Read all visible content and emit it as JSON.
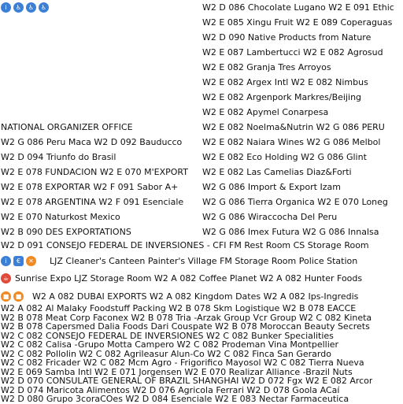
{
  "icons": {
    "row1": [
      "info-icon",
      "accessibility-icon",
      "accessibility-icon",
      "accessibility-icon"
    ],
    "row14": [
      "info-icon",
      "atm-icon",
      "no-entry-icon"
    ],
    "row15": [
      "restaurant-icon"
    ],
    "row16": [
      "storage-icon",
      "storage-icon"
    ],
    "colors": {
      "blue": "#3b7fd6",
      "red": "#e04a3a",
      "orange": "#f08a24"
    }
  },
  "right_col": [
    "W2 D 086 Chocolate Lugano W2 E 091 Ethic",
    "W2 E 085 Xingu Fruit W2 E 089 Coperaguas",
    "W2 D 090 Native Products from Nature",
    "W2 E 087 Lambertucci W2 E 082 Agrosud",
    "W2 E 082 Granja Tres Arroyos",
    "W2 E 082 Argex Intl W2 E 082 Nimbus",
    "W2 E 082 Argenpork Markres/Beijing",
    "W2 E 082 Apymel Conarpesa",
    "W2 E 082 Noelma&Nutrin W2 G 086 PERU",
    "W2 E 082 Naiara Wines W2 G 086 Melbol",
    "W2 E 082 Eco Holding W2 G 086 Glint",
    "W2 E 082 Las Camelias Diaz&Forti",
    "W2 G 086 Import & Export Izam",
    "W2 G 086 Tierra Organica W2 E 070 Loneg",
    "W2 G 086 Wiraccocha Del Peru",
    "W2 G 086 Imex Futura W2 G 086 Innalsa"
  ],
  "left_col": [
    "NATIONAL ORGANIZER OFFICE",
    "W2 G 086 Peru Maca W2 D 092 Bauducco",
    "W2 D 094 Triunfo do Brasil",
    "W2 E 078 FUNDACION W2 E 070 M'EXPORT",
    "W2 E 078 EXPORTAR W2 F 091 Sabor A+",
    "W2 E 078 ARGENTINA W2 F 091 Esenciale",
    "W2 E 070 Naturkost Mexico",
    "W2 B 090 DES EXPORTATIONS"
  ],
  "full_rows": {
    "r13": "W2 D 091 CONSEJO FEDERAL DE INVERSIONES - CFI FM Rest Room CS Storage Room",
    "r14": "LJZ Cleaner's Canteen Painter's Village FM Storage Room Police Station",
    "r15": "Sunrise Expo LJZ Storage Room W2 A 082 Coffee Planet W2 A 082 Hunter Foods",
    "r16": "W2 A 082 DUBAI EXPORTS W2 A 082 Kingdom Dates W2 A 082 Ips-Ingredis",
    "rest": [
      "W2 A 082 Al Malaky Foodstuff Packing W2 B 078 Skm Logistique W2 B 078 EACCE",
      "W2 B 078 Meat Corp Faconex W2 B 078 Tria -Arzak Group Vcr Group W2 C 082 Kineta",
      "W2 B 078 Capersmed Dalia Foods Dari Couspate W2 B 078 Moroccan Beauty Secrets",
      "W2 C 082 CONSEJO FEDERAL DE INVERSIONES W2 C 082 Bunker Specialities",
      "W2 C 082 Calisa -Grupo Motta Campero W2 C 082 Prodeman Vina Montpellier",
      "W2 C 082 Pollolin W2 C 082 Agrileasur Alun-Co W2 C 082 Finca San Gerardo",
      "W2 C 082 Fricader W2 C 082 Mcm Agro - Frigorifico Mayosol W2 C 082 Tierra Nueva",
      "W2 E 069 Samba Intl W2 E 071 Jorgensen W2 E 070 Realizar Alliance -Brazil Nuts",
      "W2 D 070 CONSULATE GENERAL OF BRAZIL SHANGHAI W2 D 072 Fgx W2 E 082 Arcor",
      "W2 D 074 Maricota Alimentos W2 D 076 Agricola Ferrari W2 D 078 Goola ACaí",
      "W2 D 080 Grupo 3coraCOes W2 D 084 Esenciale W2 E 083 Nectar Farmaceutica"
    ]
  }
}
